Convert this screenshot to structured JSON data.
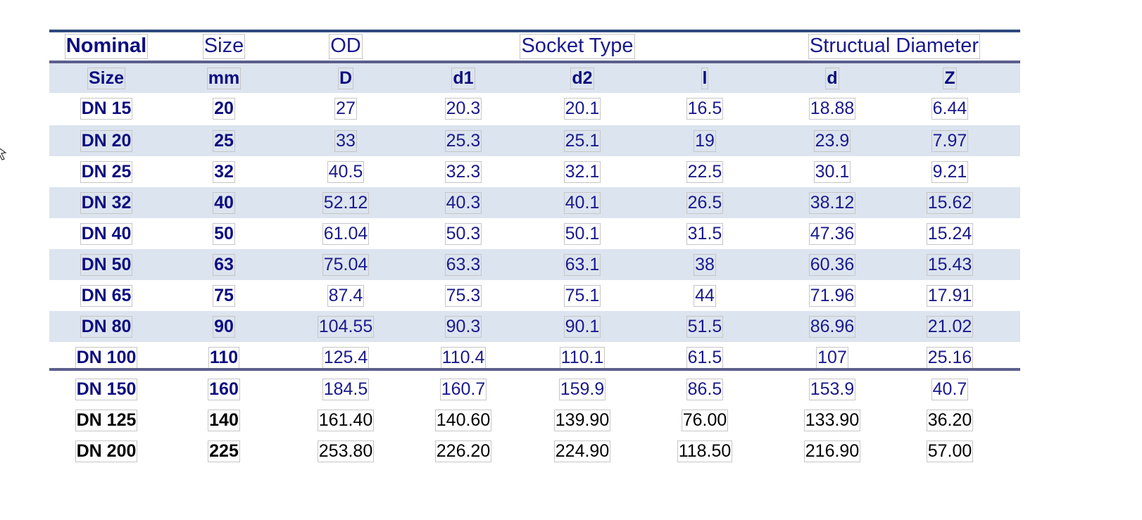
{
  "header_row1": [
    "Nominal",
    "Size",
    "OD",
    "Socket Type",
    "Structual Diameter"
  ],
  "header_row2": [
    "Size",
    "mm",
    "D",
    "d1",
    "d2",
    "l",
    "d",
    "Z"
  ],
  "rows": [
    [
      "DN 15",
      "20",
      "27",
      "20.3",
      "20.1",
      "16.5",
      "18.88",
      "6.44"
    ],
    [
      "DN 20",
      "25",
      "33",
      "25.3",
      "25.1",
      "19",
      "23.9",
      "7.97"
    ],
    [
      "DN 25",
      "32",
      "40.5",
      "32.3",
      "32.1",
      "22.5",
      "30.1",
      "9.21"
    ],
    [
      "DN 32",
      "40",
      "52.12",
      "40.3",
      "40.1",
      "26.5",
      "38.12",
      "15.62"
    ],
    [
      "DN 40",
      "50",
      "61.04",
      "50.3",
      "50.1",
      "31.5",
      "47.36",
      "15.24"
    ],
    [
      "DN 50",
      "63",
      "75.04",
      "63.3",
      "63.1",
      "38",
      "60.36",
      "15.43"
    ],
    [
      "DN 65",
      "75",
      "87.4",
      "75.3",
      "75.1",
      "44",
      "71.96",
      "17.91"
    ],
    [
      "DN 80",
      "90",
      "104.55",
      "90.3",
      "90.1",
      "51.5",
      "86.96",
      "21.02"
    ],
    [
      "DN 100",
      "110",
      "125.4",
      "110.4",
      "110.1",
      "61.5",
      "107",
      "25.16"
    ]
  ],
  "extra_rows": [
    [
      "DN 150",
      "160",
      "184.5",
      "160.7",
      "159.9",
      "86.5",
      "153.9",
      "40.7"
    ],
    [
      "DN 125",
      "140",
      "161.40",
      "140.60",
      "139.90",
      "76.00",
      "133.90",
      "36.20"
    ],
    [
      "DN 200",
      "225",
      "253.80",
      "226.20",
      "224.90",
      "118.50",
      "216.90",
      "57.00"
    ]
  ],
  "colors": {
    "header_text": "#0d0d80",
    "body_text": "#1a1a8c",
    "band": "#dce4ef",
    "rule": "#2e4a7e"
  },
  "icons": {
    "cursor": "move-cursor-icon"
  }
}
